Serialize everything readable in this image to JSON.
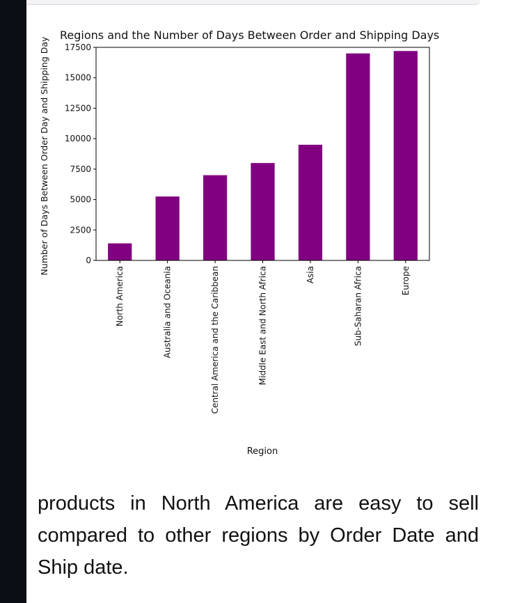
{
  "chart_data": {
    "type": "bar",
    "title": "Regions and the Number of Days Between Order and Shipping Days",
    "xlabel": "Region",
    "ylabel": "Number of Days Between Order Day and Shipping Day",
    "categories": [
      "North America",
      "Australia and Oceania",
      "Central America and the Caribbean",
      "Middle East and North Africa",
      "Asia",
      "Sub-Saharan Africa",
      "Europe"
    ],
    "values": [
      1400,
      5250,
      7000,
      8000,
      9500,
      17000,
      17200
    ],
    "ylim": [
      0,
      17500
    ],
    "yticks": [
      "0",
      "2500",
      "5000",
      "7500",
      "10000",
      "12500",
      "15000",
      "17500"
    ],
    "bar_color": "#800080",
    "grid": false
  },
  "caption": {
    "text": "products in North America are easy to sell compared to other regions by Order Date and Ship date."
  }
}
